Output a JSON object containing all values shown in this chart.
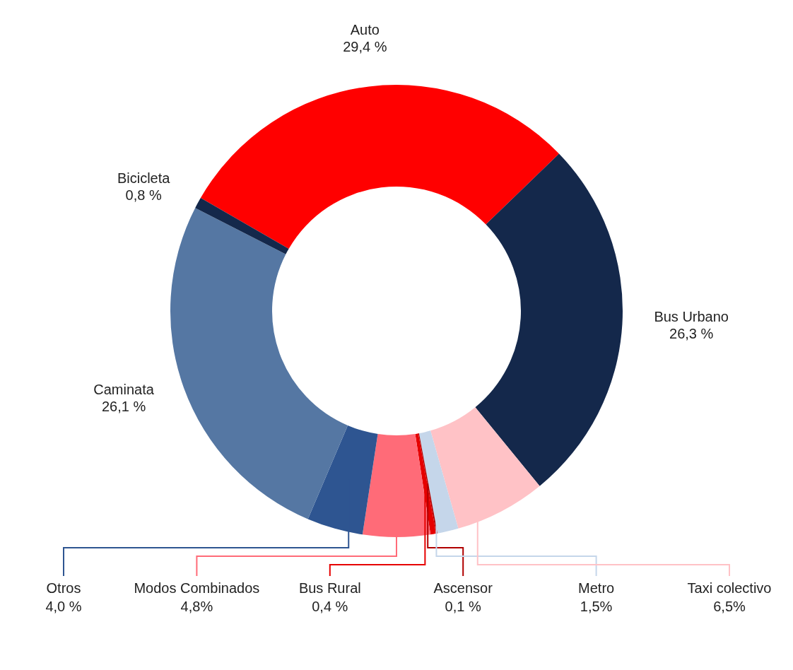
{
  "chart_data": {
    "type": "donut",
    "categories": [
      "Auto",
      "Bus Urbano",
      "Taxi colectivo",
      "Metro",
      "Ascensor",
      "Bus Rural",
      "Modos Combinados",
      "Otros",
      "Caminata",
      "Bicicleta"
    ],
    "values": [
      29.4,
      26.3,
      6.5,
      1.5,
      0.1,
      0.4,
      4.8,
      4.0,
      26.1,
      0.8
    ],
    "value_labels": [
      "29,4 %",
      "26,3 %",
      "6,5%",
      "1,5%",
      "0,1 %",
      "0,4 %",
      "4,8%",
      "4,0 %",
      "26,1 %",
      "0,8 %"
    ],
    "colors": [
      "#ff0000",
      "#14284b",
      "#ffc2c6",
      "#c5d6ea",
      "#b00000",
      "#e60000",
      "#ff6b78",
      "#2e5591",
      "#5577a3",
      "#14284b"
    ],
    "legend": false
  }
}
